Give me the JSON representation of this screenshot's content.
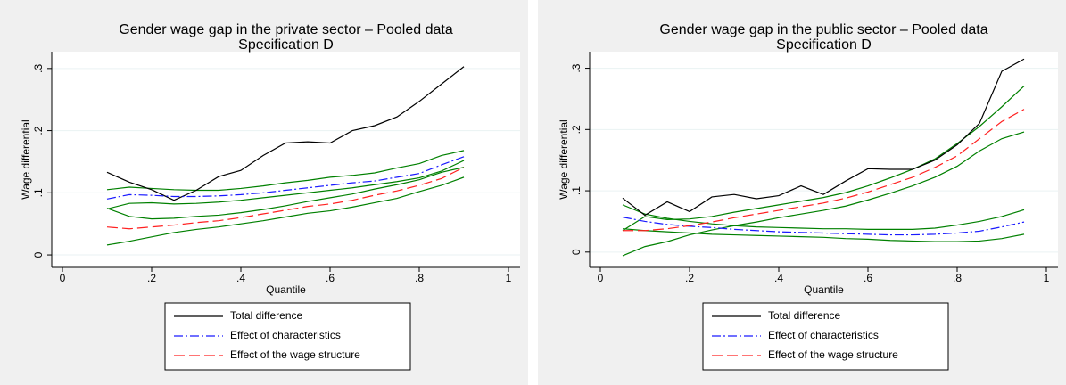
{
  "chart_data": [
    {
      "type": "line",
      "title": "Gender wage gap in the private sector – Pooled data",
      "subtitle": "Specification D",
      "x_label": "Quantile",
      "y_label": "Wage differential",
      "x": [
        0.1,
        0.15,
        0.2,
        0.25,
        0.3,
        0.35,
        0.4,
        0.45,
        0.5,
        0.55,
        0.6,
        0.65,
        0.7,
        0.75,
        0.8,
        0.85,
        0.9
      ],
      "series": [
        {
          "name": "Total difference",
          "color": "#000000",
          "dash": "solid",
          "values": [
            0.133,
            0.117,
            0.105,
            0.088,
            0.104,
            0.126,
            0.136,
            0.16,
            0.18,
            0.182,
            0.18,
            0.2,
            0.208,
            0.222,
            0.247,
            0.275,
            0.303
          ]
        },
        {
          "name": "Effect of characteristics",
          "color": "#1a1aff",
          "dash": "dash-dot",
          "values": [
            0.09,
            0.097,
            0.096,
            0.094,
            0.094,
            0.095,
            0.097,
            0.1,
            0.104,
            0.108,
            0.112,
            0.116,
            0.119,
            0.125,
            0.131,
            0.145,
            0.158
          ]
        },
        {
          "name": "Effect of the wage structure",
          "color": "#ff2020",
          "dash": "long-dash",
          "values": [
            0.045,
            0.042,
            0.045,
            0.048,
            0.052,
            0.055,
            0.06,
            0.066,
            0.072,
            0.078,
            0.082,
            0.088,
            0.096,
            0.103,
            0.112,
            0.123,
            0.141
          ]
        }
      ],
      "bands": [
        {
          "color": "#008000",
          "values": [
            0.105,
            0.109,
            0.107,
            0.105,
            0.104,
            0.104,
            0.107,
            0.111,
            0.116,
            0.12,
            0.125,
            0.128,
            0.132,
            0.14,
            0.147,
            0.16,
            0.168
          ]
        },
        {
          "color": "#008000",
          "values": [
            0.074,
            0.083,
            0.084,
            0.082,
            0.083,
            0.085,
            0.088,
            0.092,
            0.096,
            0.1,
            0.104,
            0.108,
            0.113,
            0.118,
            0.124,
            0.135,
            0.152
          ]
        },
        {
          "color": "#008000",
          "values": [
            0.075,
            0.062,
            0.058,
            0.059,
            0.062,
            0.064,
            0.068,
            0.073,
            0.079,
            0.086,
            0.092,
            0.098,
            0.106,
            0.113,
            0.121,
            0.133,
            0.141
          ]
        },
        {
          "color": "#008000",
          "values": [
            0.016,
            0.022,
            0.029,
            0.036,
            0.041,
            0.045,
            0.05,
            0.055,
            0.061,
            0.067,
            0.071,
            0.077,
            0.084,
            0.091,
            0.102,
            0.112,
            0.125
          ]
        }
      ],
      "xlim": [
        -0.024,
        1.026
      ],
      "ylim": [
        -0.02,
        0.327
      ],
      "xticks": [
        0,
        {
          "value": 0.2,
          "label": ".2"
        },
        {
          "value": 0.4,
          "label": ".4"
        },
        {
          "value": 0.6,
          "label": ".6"
        },
        {
          "value": 0.8,
          "label": ".8"
        },
        1
      ],
      "yticks": [
        0,
        {
          "value": 0.1,
          "label": ".1"
        },
        {
          "value": 0.2,
          "label": ".2"
        },
        {
          "value": 0.3,
          "label": ".3"
        }
      ],
      "grid": true,
      "legend": "bottom"
    },
    {
      "type": "line",
      "title": "Gender wage gap in the public sector – Pooled data",
      "subtitle": "Specification D",
      "x_label": "Quantile",
      "y_label": "Wage differential",
      "x": [
        0.05,
        0.1,
        0.15,
        0.2,
        0.25,
        0.3,
        0.35,
        0.4,
        0.45,
        0.5,
        0.55,
        0.6,
        0.65,
        0.7,
        0.75,
        0.8,
        0.85,
        0.9,
        0.95
      ],
      "series": [
        {
          "name": "Total difference",
          "color": "#000000",
          "dash": "solid",
          "values": [
            0.088,
            0.06,
            0.082,
            0.066,
            0.09,
            0.094,
            0.087,
            0.092,
            0.108,
            0.094,
            0.116,
            0.136,
            0.135,
            0.135,
            0.15,
            0.175,
            0.21,
            0.295,
            0.315
          ]
        },
        {
          "name": "Effect of characteristics",
          "color": "#1a1aff",
          "dash": "dash-dot",
          "values": [
            0.057,
            0.05,
            0.045,
            0.042,
            0.04,
            0.037,
            0.035,
            0.033,
            0.032,
            0.031,
            0.03,
            0.029,
            0.028,
            0.028,
            0.029,
            0.031,
            0.034,
            0.041,
            0.049
          ]
        },
        {
          "name": "Effect of the wage structure",
          "color": "#ff2020",
          "dash": "long-dash",
          "values": [
            0.035,
            0.035,
            0.038,
            0.043,
            0.049,
            0.056,
            0.062,
            0.068,
            0.074,
            0.08,
            0.088,
            0.098,
            0.11,
            0.122,
            0.138,
            0.157,
            0.185,
            0.213,
            0.233
          ]
        }
      ],
      "bands": [
        {
          "color": "#008000",
          "values": [
            0.077,
            0.062,
            0.055,
            0.05,
            0.046,
            0.043,
            0.041,
            0.04,
            0.039,
            0.038,
            0.038,
            0.037,
            0.037,
            0.037,
            0.039,
            0.044,
            0.05,
            0.058,
            0.069
          ]
        },
        {
          "color": "#008000",
          "values": [
            0.038,
            0.035,
            0.033,
            0.031,
            0.029,
            0.028,
            0.027,
            0.026,
            0.025,
            0.024,
            0.022,
            0.021,
            0.019,
            0.018,
            0.017,
            0.017,
            0.018,
            0.022,
            0.029
          ]
        },
        {
          "color": "#008000",
          "values": [
            0.035,
            0.058,
            0.053,
            0.054,
            0.058,
            0.065,
            0.071,
            0.077,
            0.083,
            0.089,
            0.097,
            0.108,
            0.121,
            0.135,
            0.152,
            0.177,
            0.205,
            0.237,
            0.271
          ]
        },
        {
          "color": "#008000",
          "values": [
            -0.006,
            0.009,
            0.017,
            0.028,
            0.036,
            0.043,
            0.049,
            0.056,
            0.062,
            0.068,
            0.075,
            0.085,
            0.096,
            0.108,
            0.122,
            0.14,
            0.165,
            0.185,
            0.196
          ]
        }
      ],
      "xlim": [
        -0.024,
        1.026
      ],
      "ylim": [
        -0.025,
        0.327
      ],
      "xticks": [
        0,
        {
          "value": 0.2,
          "label": ".2"
        },
        {
          "value": 0.4,
          "label": ".4"
        },
        {
          "value": 0.6,
          "label": ".6"
        },
        {
          "value": 0.8,
          "label": ".8"
        },
        1
      ],
      "yticks": [
        0,
        {
          "value": 0.1,
          "label": ".1"
        },
        {
          "value": 0.2,
          "label": ".2"
        },
        {
          "value": 0.3,
          "label": ".3"
        }
      ],
      "grid": true,
      "legend": "bottom"
    }
  ]
}
